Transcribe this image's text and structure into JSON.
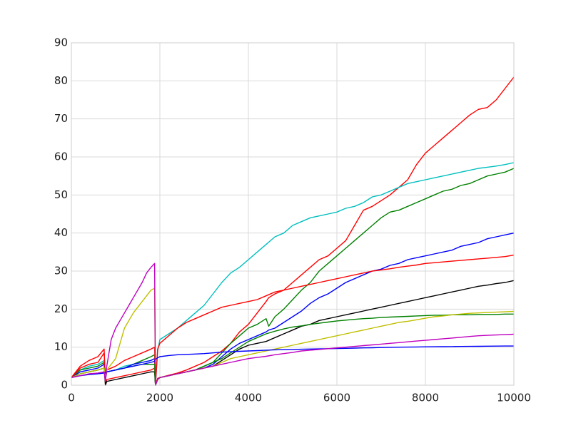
{
  "chart_data": {
    "type": "line",
    "title": "",
    "xlabel": "",
    "ylabel": "",
    "xlim": [
      0,
      10000
    ],
    "ylim": [
      0,
      90
    ],
    "xticks": [
      0,
      2000,
      4000,
      6000,
      8000,
      10000
    ],
    "yticks": [
      0,
      10,
      20,
      30,
      40,
      50,
      60,
      70,
      80,
      90
    ],
    "grid": true,
    "legend": "none",
    "series": [
      {
        "color": "#ff0000",
        "x": [
          0,
          200,
          400,
          600,
          740,
          770,
          800,
          1000,
          1200,
          1400,
          1600,
          1800,
          1880,
          1900,
          1950,
          2000,
          2200,
          2400,
          2600,
          2800,
          3000,
          3200,
          3400,
          3600,
          3800,
          4000,
          4200,
          4400,
          4460,
          4600,
          4800,
          5000,
          5200,
          5400,
          5600,
          5800,
          6000,
          6200,
          6400,
          6600,
          6800,
          7000,
          7200,
          7400,
          7600,
          7800,
          8000,
          8200,
          8400,
          8600,
          8800,
          9000,
          9200,
          9400,
          9600,
          9800,
          10000
        ],
        "y": [
          2,
          5,
          6.5,
          7.5,
          9.5,
          0,
          1.5,
          2,
          2.5,
          3,
          3.5,
          4,
          4.5,
          0,
          1.8,
          2,
          2.6,
          3.2,
          4,
          5,
          6,
          7.5,
          9,
          11,
          14,
          16,
          19,
          22,
          23,
          24,
          25,
          27,
          29,
          31,
          33,
          34,
          36,
          38,
          42,
          46,
          47,
          48.5,
          50,
          52,
          54,
          58,
          61,
          63,
          65,
          67,
          69,
          71,
          72.5,
          73,
          75,
          78,
          81
        ]
      },
      {
        "color": "#00bfbf",
        "x": [
          0,
          200,
          400,
          600,
          740,
          770,
          800,
          1000,
          1200,
          1400,
          1600,
          1800,
          1880,
          1900,
          1950,
          2000,
          2200,
          2400,
          2600,
          2800,
          3000,
          3200,
          3400,
          3600,
          3800,
          4000,
          4200,
          4400,
          4600,
          4800,
          5000,
          5200,
          5400,
          5600,
          5800,
          6000,
          6200,
          6400,
          6600,
          6800,
          7000,
          7200,
          7400,
          7600,
          7800,
          8000,
          8200,
          8400,
          8600,
          8800,
          9000,
          9200,
          9400,
          9600,
          9800,
          10000
        ],
        "y": [
          2,
          4,
          5,
          5.5,
          6.5,
          3,
          3.5,
          4,
          5,
          5.5,
          6,
          6.5,
          7,
          0,
          9,
          12,
          13.5,
          15,
          17,
          19,
          21,
          24,
          27,
          29.5,
          31,
          33,
          35,
          37,
          39,
          40,
          42,
          43,
          44,
          44.5,
          45,
          45.5,
          46.5,
          47,
          48,
          49.5,
          50,
          51,
          52,
          53,
          53.5,
          54,
          54.5,
          55,
          55.5,
          56,
          56.5,
          57,
          57.3,
          57.6,
          58,
          58.5
        ]
      },
      {
        "color": "#008000",
        "x": [
          0,
          200,
          400,
          600,
          740,
          770,
          800,
          1000,
          1200,
          1400,
          1600,
          1800,
          1880,
          1900,
          1950,
          2000,
          2200,
          2400,
          2600,
          2800,
          3000,
          3200,
          3400,
          3600,
          3800,
          4000,
          4200,
          4400,
          4460,
          4600,
          4800,
          5000,
          5200,
          5400,
          5600,
          5800,
          6000,
          6200,
          6400,
          6600,
          6800,
          7000,
          7200,
          7400,
          7600,
          7800,
          8000,
          8200,
          8400,
          8600,
          8800,
          9000,
          9200,
          9400,
          9600,
          9800,
          10000
        ],
        "y": [
          2,
          4,
          4.5,
          5,
          6,
          2,
          3.5,
          4,
          4.5,
          5.5,
          6.5,
          7.5,
          8,
          0,
          1.5,
          2,
          2.5,
          3,
          3.5,
          4,
          5,
          6,
          8.5,
          11,
          13,
          15,
          16,
          17.5,
          15.5,
          18,
          20,
          22.5,
          25,
          27,
          30,
          32,
          34,
          36,
          38,
          40,
          42,
          44,
          45.5,
          46,
          47,
          48,
          49,
          50,
          51,
          51.5,
          52.5,
          53,
          54,
          55,
          55.5,
          56,
          57
        ]
      },
      {
        "color": "#0000ff",
        "x": [
          0,
          200,
          400,
          600,
          740,
          770,
          800,
          1000,
          1200,
          1400,
          1600,
          1800,
          1880,
          1900,
          1950,
          2000,
          2200,
          2400,
          2600,
          2800,
          3000,
          3200,
          3400,
          3600,
          3800,
          4000,
          4200,
          4400,
          4460,
          4600,
          4800,
          5000,
          5200,
          5400,
          5600,
          5800,
          6000,
          6200,
          6400,
          6600,
          6800,
          7000,
          7200,
          7400,
          7600,
          7800,
          8000,
          8200,
          8400,
          8600,
          8800,
          9000,
          9200,
          9400,
          9600,
          9800,
          10000
        ],
        "y": [
          2,
          3.5,
          4,
          4.5,
          5.5,
          1.5,
          3.5,
          4,
          4.5,
          5.5,
          6,
          6.5,
          7,
          0,
          1.5,
          2,
          2.5,
          3,
          3.5,
          4,
          4.5,
          5.5,
          7.5,
          9.5,
          11,
          12,
          13,
          14,
          14.5,
          15,
          16.5,
          18,
          19.5,
          21.5,
          23,
          24,
          25.5,
          27,
          28,
          29,
          30,
          30.5,
          31.5,
          32,
          33,
          33.5,
          34,
          34.5,
          35,
          35.5,
          36.5,
          37,
          37.5,
          38.5,
          39,
          39.5,
          40
        ]
      },
      {
        "color": "#ff0000",
        "x": [
          0,
          200,
          400,
          600,
          740,
          770,
          800,
          1000,
          1200,
          1400,
          1600,
          1800,
          1880,
          1900,
          1950,
          2000,
          2200,
          2400,
          2600,
          2800,
          3000,
          3200,
          3400,
          3600,
          3800,
          4000,
          4200,
          4400,
          4600,
          4800,
          5000,
          5200,
          5400,
          5600,
          5800,
          6000,
          6200,
          6400,
          6600,
          6800,
          7000,
          7200,
          7400,
          7600,
          7800,
          8000,
          8200,
          8400,
          8600,
          8800,
          9000,
          9200,
          9400,
          9600,
          9800,
          10000
        ],
        "y": [
          2,
          4.5,
          5.5,
          6,
          8.5,
          2,
          4,
          5,
          6.5,
          7.5,
          8.5,
          9.5,
          10,
          0,
          9.5,
          11,
          13,
          15,
          16.5,
          17.5,
          18.5,
          19.5,
          20.5,
          21,
          21.5,
          22,
          22.5,
          23.5,
          24.5,
          25,
          25.5,
          26,
          26.5,
          27,
          27.5,
          28,
          28.5,
          29,
          29.5,
          30,
          30.3,
          30.6,
          31,
          31.3,
          31.6,
          32,
          32.2,
          32.4,
          32.6,
          32.8,
          33,
          33.2,
          33.4,
          33.6,
          33.8,
          34.2
        ]
      },
      {
        "color": "#000000",
        "x": [
          0,
          200,
          400,
          600,
          740,
          770,
          800,
          1000,
          1200,
          1400,
          1600,
          1800,
          1880,
          1900,
          1950,
          2000,
          2200,
          2400,
          2600,
          2800,
          3000,
          3200,
          3400,
          3600,
          3800,
          4000,
          4200,
          4400,
          4600,
          4800,
          5000,
          5200,
          5400,
          5600,
          5800,
          6000,
          6200,
          6400,
          6600,
          6800,
          7000,
          7200,
          7400,
          7600,
          7800,
          8000,
          8200,
          8400,
          8600,
          8800,
          9000,
          9200,
          9400,
          9600,
          9800,
          10000
        ],
        "y": [
          2,
          3,
          3.5,
          4,
          4.5,
          0,
          1,
          1.5,
          2,
          2.5,
          3,
          3.5,
          3.5,
          0,
          1.5,
          2,
          2.5,
          3,
          3.5,
          4,
          4.5,
          5,
          6.5,
          8,
          9.5,
          10.5,
          11,
          11.5,
          12.5,
          13.5,
          14.5,
          15.5,
          16,
          17,
          17.5,
          18,
          18.5,
          19,
          19.5,
          20,
          20.5,
          21,
          21.5,
          22,
          22.5,
          23,
          23.5,
          24,
          24.5,
          25,
          25.5,
          26,
          26.3,
          26.7,
          27,
          27.5
        ]
      },
      {
        "color": "#008000",
        "x": [
          0,
          200,
          400,
          600,
          740,
          770,
          800,
          1000,
          1200,
          1400,
          1600,
          1800,
          1880,
          1900,
          1950,
          2000,
          2200,
          2400,
          2600,
          2800,
          3000,
          3200,
          3400,
          3600,
          3800,
          4000,
          4200,
          4400,
          4600,
          4800,
          5000,
          5200,
          5400,
          5600,
          5800,
          6000,
          6200,
          6400,
          6600,
          6800,
          7000,
          7200,
          7400,
          7600,
          7800,
          8000,
          8200,
          8400,
          8600,
          8800,
          9000,
          9200,
          9400,
          9600,
          9800,
          10000
        ],
        "y": [
          2,
          3,
          3.5,
          4,
          4.5,
          3,
          3.5,
          4,
          4.5,
          5,
          5.5,
          5.5,
          5.5,
          0,
          1.5,
          2,
          2.5,
          3,
          3.5,
          4,
          5,
          6,
          7,
          8.5,
          10,
          11.5,
          12.5,
          13.5,
          14.2,
          14.8,
          15.3,
          15.6,
          16,
          16.3,
          16.6,
          16.9,
          17.1,
          17.3,
          17.5,
          17.6,
          17.8,
          17.9,
          18,
          18.1,
          18.2,
          18.3,
          18.4,
          18.4,
          18.5,
          18.5,
          18.5,
          18.6,
          18.6,
          18.6,
          18.7,
          18.7
        ]
      },
      {
        "color": "#bfbf00",
        "x": [
          0,
          200,
          400,
          600,
          740,
          770,
          800,
          1000,
          1100,
          1200,
          1300,
          1400,
          1500,
          1600,
          1700,
          1800,
          1880,
          1900,
          1950,
          2000,
          2200,
          2400,
          2600,
          2800,
          3000,
          3200,
          3400,
          3600,
          3800,
          4000,
          4200,
          4400,
          4600,
          4800,
          5000,
          5200,
          5400,
          5600,
          5800,
          6000,
          6200,
          6400,
          6600,
          6800,
          7000,
          7200,
          7400,
          7600,
          7800,
          8000,
          8200,
          8400,
          8600,
          8800,
          9000,
          9200,
          9400,
          9600,
          9800,
          10000
        ],
        "y": [
          2,
          3,
          3.5,
          4,
          4.5,
          1.5,
          4,
          7,
          11,
          15,
          17,
          19,
          20.5,
          22,
          23.5,
          25,
          25.5,
          0,
          1.5,
          2,
          2.5,
          3,
          3.5,
          4,
          4.5,
          5,
          6,
          7,
          7.5,
          8,
          8.5,
          9,
          9.5,
          10,
          10.5,
          11,
          11.5,
          12,
          12.5,
          13,
          13.5,
          14,
          14.5,
          15,
          15.5,
          16,
          16.5,
          16.8,
          17.2,
          17.6,
          18,
          18.2,
          18.5,
          18.7,
          18.9,
          19,
          19.1,
          19.2,
          19.3,
          19.4
        ]
      },
      {
        "color": "#0000ff",
        "x": [
          0,
          200,
          400,
          600,
          740,
          770,
          800,
          1000,
          1200,
          1400,
          1600,
          1800,
          1880,
          1900,
          1950,
          2000,
          2200,
          2400,
          2600,
          2800,
          3000,
          3200,
          3400,
          3600,
          3800,
          4000,
          4200,
          4400,
          4600,
          4800,
          5000,
          5200,
          5400,
          5600,
          5800,
          6000,
          6200,
          6400,
          6600,
          6800,
          7000,
          7200,
          7400,
          7600,
          7800,
          8000,
          8200,
          8400,
          8600,
          8800,
          9000,
          9200,
          9400,
          9600,
          9800,
          10000
        ],
        "y": [
          2,
          2.5,
          2.8,
          3,
          3.2,
          3.3,
          3.5,
          4,
          4.5,
          5,
          5.5,
          6,
          6.3,
          6.8,
          7.2,
          7.5,
          7.8,
          8,
          8.1,
          8.2,
          8.3,
          8.5,
          8.7,
          8.8,
          8.9,
          9,
          9.1,
          9.2,
          9.3,
          9.35,
          9.4,
          9.45,
          9.5,
          9.55,
          9.6,
          9.65,
          9.7,
          9.75,
          9.8,
          9.85,
          9.9,
          9.95,
          10,
          10.02,
          10.05,
          10.08,
          10.1,
          10.12,
          10.15,
          10.18,
          10.2,
          10.22,
          10.25,
          10.27,
          10.3,
          10.3
        ]
      },
      {
        "color": "#bf00bf",
        "x": [
          0,
          200,
          400,
          600,
          740,
          770,
          800,
          900,
          1000,
          1100,
          1200,
          1300,
          1400,
          1500,
          1600,
          1700,
          1800,
          1880,
          1900,
          1950,
          2000,
          2200,
          2400,
          2600,
          2800,
          3000,
          3200,
          3400,
          3600,
          3800,
          4000,
          4200,
          4400,
          4600,
          4800,
          5000,
          5200,
          5400,
          5600,
          5800,
          6000,
          6200,
          6400,
          6600,
          6800,
          7000,
          7200,
          7400,
          7600,
          7800,
          8000,
          8200,
          8400,
          8600,
          8800,
          9000,
          9200,
          9400,
          9600,
          9800,
          10000
        ],
        "y": [
          2,
          2.5,
          3,
          3.2,
          3.5,
          1,
          5,
          12,
          15,
          17,
          19,
          21,
          23,
          25,
          27,
          29.5,
          31,
          32,
          0,
          1.5,
          2,
          2.5,
          3,
          3.5,
          4,
          4.5,
          5,
          5.5,
          6,
          6.5,
          7,
          7.3,
          7.6,
          8,
          8.3,
          8.6,
          9,
          9.2,
          9.4,
          9.6,
          9.8,
          10,
          10.2,
          10.4,
          10.6,
          10.8,
          11,
          11.2,
          11.4,
          11.6,
          11.8,
          12,
          12.2,
          12.4,
          12.6,
          12.8,
          13,
          13.1,
          13.2,
          13.3,
          13.4
        ]
      }
    ]
  }
}
